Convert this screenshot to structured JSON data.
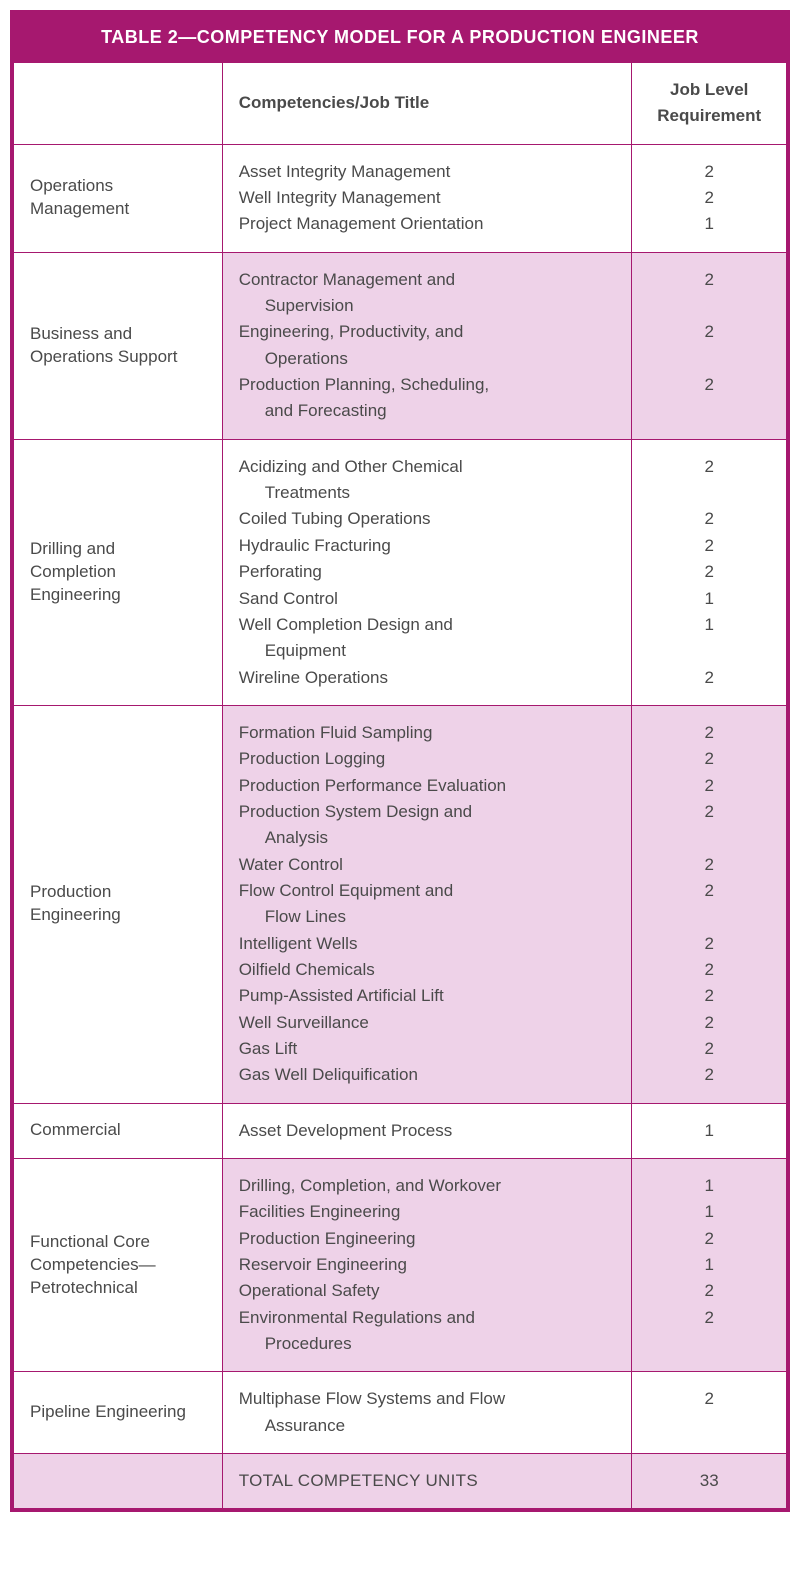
{
  "title": "TABLE 2—COMPETENCY MODEL FOR A PRODUCTION ENGINEER",
  "columns": {
    "category": "",
    "competencies": "Competencies/Job Title",
    "requirement": "Job Level Requirement"
  },
  "sections": [
    {
      "category": "Operations Management",
      "tinted": false,
      "rows": [
        {
          "label": "Asset Integrity Management",
          "req": "2"
        },
        {
          "label": "Well Integrity Management",
          "req": "2"
        },
        {
          "label": "Project Management Orientation",
          "req": "1"
        }
      ]
    },
    {
      "category": "Business and Operations Support",
      "tinted": true,
      "rows": [
        {
          "label": "Contractor Management and",
          "cont": "Supervision",
          "req": "2"
        },
        {
          "label": "Engineering, Productivity, and",
          "cont": "Operations",
          "req": "2"
        },
        {
          "label": "Production Planning, Scheduling,",
          "cont": "and Forecasting",
          "req": "2"
        }
      ]
    },
    {
      "category": "Drilling and Completion Engineering",
      "tinted": false,
      "rows": [
        {
          "label": "Acidizing and Other Chemical",
          "cont": "Treatments",
          "req": "2"
        },
        {
          "label": "Coiled Tubing Operations",
          "req": "2"
        },
        {
          "label": "Hydraulic Fracturing",
          "req": "2"
        },
        {
          "label": "Perforating",
          "req": "2"
        },
        {
          "label": "Sand Control",
          "req": "1"
        },
        {
          "label": "Well Completion Design and",
          "cont": "Equipment",
          "req": "1"
        },
        {
          "label": "Wireline Operations",
          "req": "2"
        }
      ]
    },
    {
      "category": "Production Engineering",
      "tinted": true,
      "rows": [
        {
          "label": "Formation Fluid Sampling",
          "req": "2"
        },
        {
          "label": "Production Logging",
          "req": "2"
        },
        {
          "label": "Production Performance Evaluation",
          "req": "2"
        },
        {
          "label": "Production System Design and",
          "cont": "Analysis",
          "req": "2"
        },
        {
          "label": "Water Control",
          "req": "2"
        },
        {
          "label": "Flow Control Equipment and",
          "cont": "Flow Lines",
          "req": "2"
        },
        {
          "label": "Intelligent Wells",
          "req": "2"
        },
        {
          "label": "Oilfield Chemicals",
          "req": "2"
        },
        {
          "label": "Pump-Assisted Artificial Lift",
          "req": "2"
        },
        {
          "label": "Well Surveillance",
          "req": "2"
        },
        {
          "label": "Gas Lift",
          "req": "2"
        },
        {
          "label": "Gas Well Deliquification",
          "req": "2"
        }
      ]
    },
    {
      "category": "Commercial",
      "tinted": false,
      "rows": [
        {
          "label": "Asset Development Process",
          "req": "1"
        }
      ]
    },
    {
      "category": "Functional Core Competencies—Petrotechnical",
      "tinted": true,
      "rows": [
        {
          "label": "Drilling, Completion, and Workover",
          "req": "1"
        },
        {
          "label": "Facilities Engineering",
          "req": "1"
        },
        {
          "label": "Production Engineering",
          "req": "2"
        },
        {
          "label": "Reservoir Engineering",
          "req": "1"
        },
        {
          "label": "Operational Safety",
          "req": "2"
        },
        {
          "label": "Environmental Regulations and",
          "cont": "Procedures",
          "req": "2"
        }
      ]
    },
    {
      "category": "Pipeline Engineering",
      "tinted": false,
      "rows": [
        {
          "label": "Multiphase Flow Systems and Flow",
          "cont": "Assurance",
          "req": "2"
        }
      ]
    }
  ],
  "totals": {
    "label": "TOTAL COMPETENCY UNITS",
    "value": "33"
  },
  "colors": {
    "accent": "#a6186f",
    "tint": "#eed2e8",
    "text": "#4a4a4a",
    "background": "#ffffff"
  }
}
